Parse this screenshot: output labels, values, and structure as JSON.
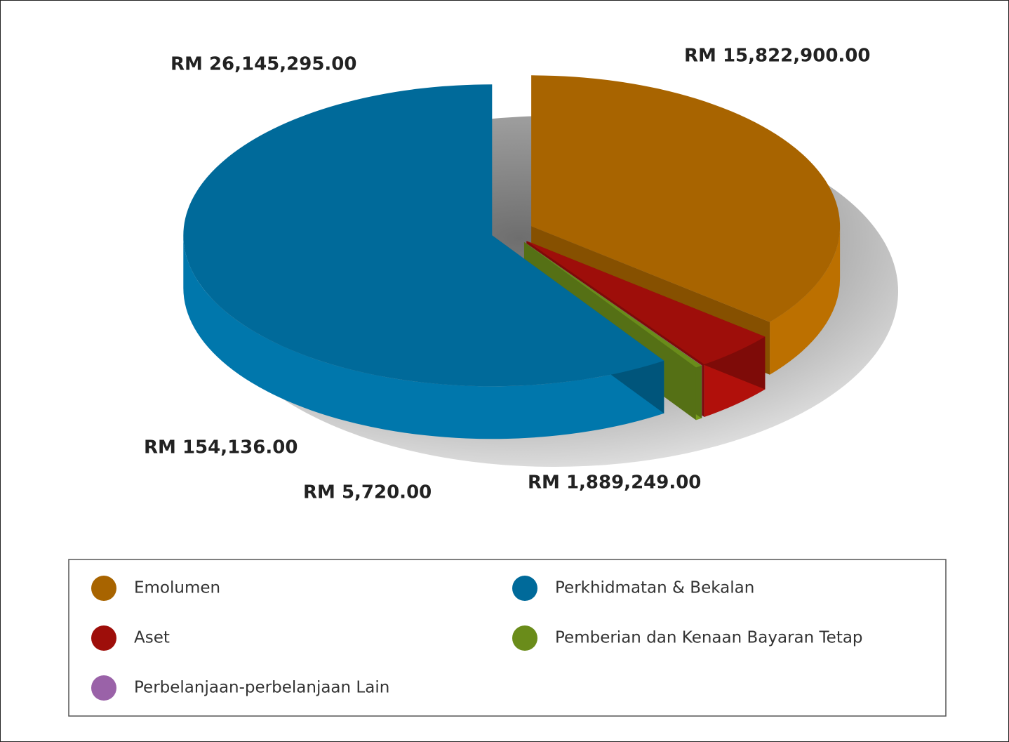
{
  "chart_data": {
    "type": "pie",
    "categories": [
      "Emolumen",
      "Perkhidmatan & Bekalan",
      "Aset",
      "Pemberian dan Kenaan Bayaran Tetap",
      "Perbelanjaan-perbelanjaan Lain"
    ],
    "values": [
      15822900,
      26145295,
      1889249,
      154136,
      5720
    ],
    "value_labels": [
      "RM 15,822,900.00",
      "RM 26,145,295.00",
      "RM 1,889,249.00",
      "RM 154,136.00",
      "RM 5,720.00"
    ],
    "colors": [
      "#a86400",
      "#006a9a",
      "#9e0e0a",
      "#6a8c1a",
      "#9a62a8"
    ],
    "legend": "bottom"
  }
}
